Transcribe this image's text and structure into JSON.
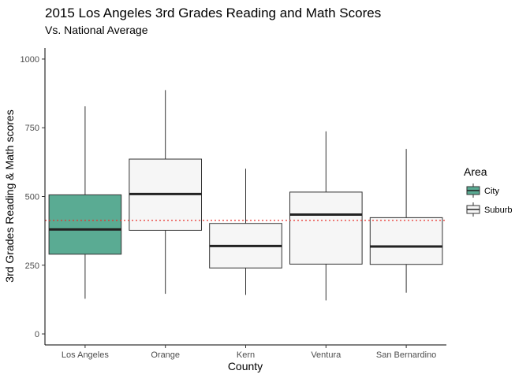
{
  "chart_data": {
    "type": "boxplot",
    "title": "2015 Los Angeles 3rd Grades Reading and Math Scores",
    "subtitle": "Vs. National Average",
    "xlabel": "County",
    "ylabel": "3rd Grades Reading & Math scores",
    "ylim": [
      -40,
      1040
    ],
    "y_ticks": [
      0,
      250,
      500,
      750,
      1000
    ],
    "grid": false,
    "legend": {
      "title": "Area",
      "position": "right",
      "entries": [
        {
          "label": "City",
          "color": "#5aab93"
        },
        {
          "label": "Suburb",
          "color": "#f6f6f6"
        }
      ]
    },
    "reference_line": {
      "y": 413,
      "style": "dotted",
      "color": "#e8302b"
    },
    "categories": [
      "Los Angeles",
      "Orange",
      "Kern",
      "Ventura",
      "San Bernardino"
    ],
    "boxes": [
      {
        "category": "Los Angeles",
        "area": "City",
        "min": 128,
        "q1": 290,
        "median": 380,
        "q3": 506,
        "max": 828
      },
      {
        "category": "Orange",
        "area": "Suburb",
        "min": 146,
        "q1": 377,
        "median": 509,
        "q3": 636,
        "max": 887
      },
      {
        "category": "Kern",
        "area": "Suburb",
        "min": 142,
        "q1": 240,
        "median": 320,
        "q3": 402,
        "max": 601
      },
      {
        "category": "Ventura",
        "area": "Suburb",
        "min": 122,
        "q1": 254,
        "median": 434,
        "q3": 516,
        "max": 737
      },
      {
        "category": "San Bernardino",
        "area": "Suburb",
        "min": 150,
        "q1": 253,
        "median": 318,
        "q3": 423,
        "max": 673
      }
    ]
  }
}
